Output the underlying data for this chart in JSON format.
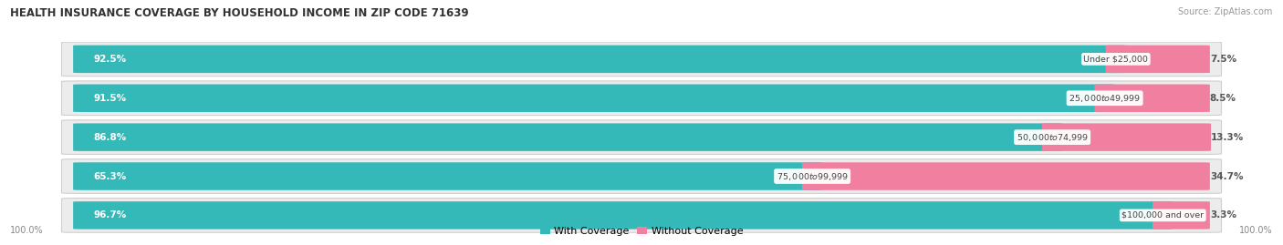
{
  "title": "HEALTH INSURANCE COVERAGE BY HOUSEHOLD INCOME IN ZIP CODE 71639",
  "source": "Source: ZipAtlas.com",
  "categories": [
    "Under $25,000",
    "$25,000 to $49,999",
    "$50,000 to $74,999",
    "$75,000 to $99,999",
    "$100,000 and over"
  ],
  "with_coverage": [
    92.5,
    91.5,
    86.8,
    65.3,
    96.7
  ],
  "without_coverage": [
    7.5,
    8.5,
    13.3,
    34.7,
    3.3
  ],
  "with_coverage_labels": [
    "92.5%",
    "91.5%",
    "86.8%",
    "65.3%",
    "96.7%"
  ],
  "without_coverage_labels": [
    "7.5%",
    "8.5%",
    "13.3%",
    "34.7%",
    "3.3%"
  ],
  "color_with": "#35b8b8",
  "color_without": "#f07fa0",
  "color_label_bg": "#f0f0f0",
  "legend_with": "With Coverage",
  "legend_without": "Without Coverage",
  "left_axis_label": "100.0%",
  "right_axis_label": "100.0%",
  "background_color": "#ffffff"
}
